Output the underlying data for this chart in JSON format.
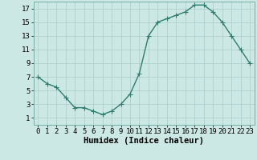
{
  "x": [
    0,
    1,
    2,
    3,
    4,
    5,
    6,
    7,
    8,
    9,
    10,
    11,
    12,
    13,
    14,
    15,
    16,
    17,
    18,
    19,
    20,
    21,
    22,
    23
  ],
  "y": [
    7,
    6,
    5.5,
    4,
    2.5,
    2.5,
    2,
    1.5,
    2,
    3,
    4.5,
    7.5,
    13,
    15,
    15.5,
    16,
    16.5,
    17.5,
    17.5,
    16.5,
    15,
    13,
    11,
    9
  ],
  "line_color": "#2e7d6e",
  "marker": "D",
  "marker_size": 2.2,
  "bg_color": "#cce8e4",
  "grid_color": "#aaccca",
  "xlabel": "Humidex (Indice chaleur)",
  "xlim": [
    -0.5,
    23.5
  ],
  "ylim": [
    0,
    18
  ],
  "xticks": [
    0,
    1,
    2,
    3,
    4,
    5,
    6,
    7,
    8,
    9,
    10,
    11,
    12,
    13,
    14,
    15,
    16,
    17,
    18,
    19,
    20,
    21,
    22,
    23
  ],
  "yticks": [
    1,
    3,
    5,
    7,
    9,
    11,
    13,
    15,
    17
  ],
  "xlabel_fontsize": 7.5,
  "tick_fontsize": 6.5,
  "line_width": 1.0
}
